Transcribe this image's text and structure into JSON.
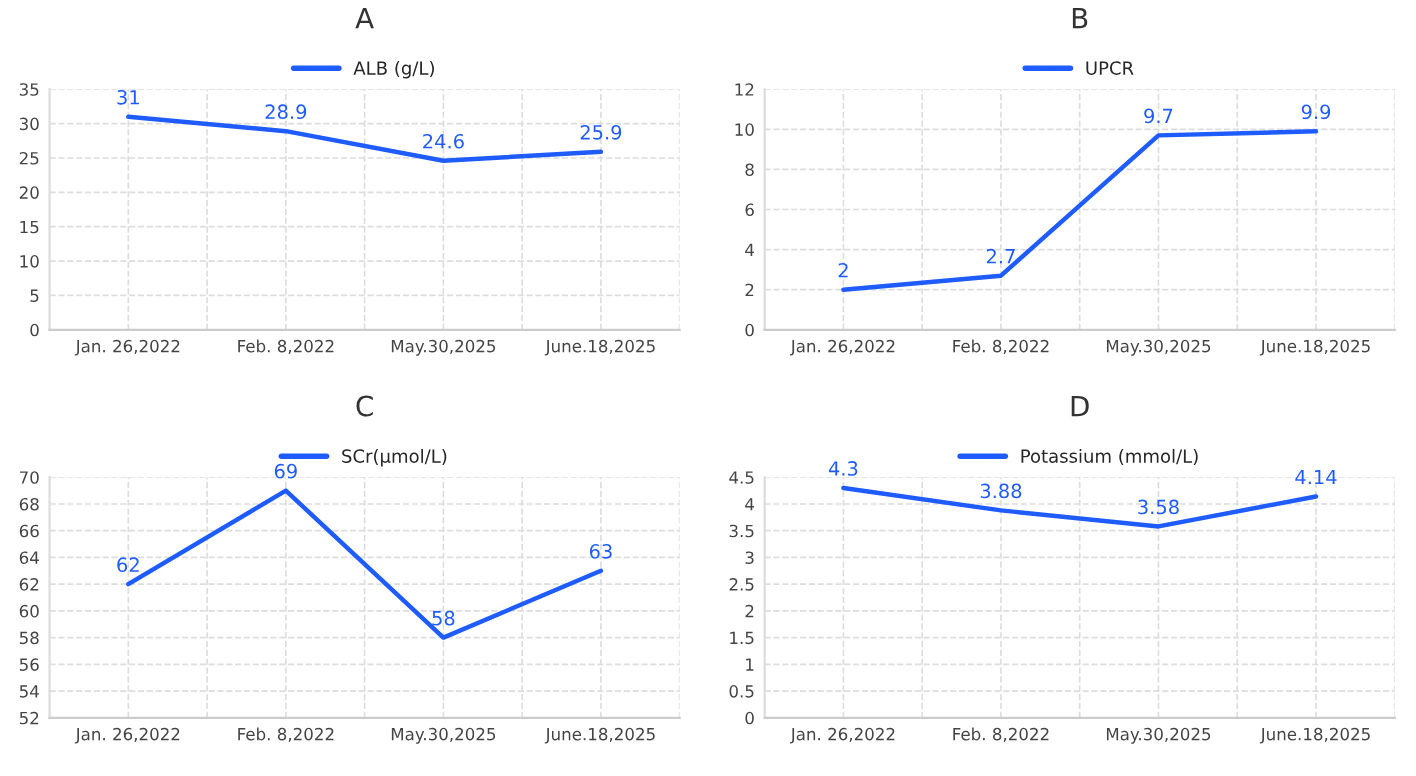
{
  "chart_data": [
    {
      "type": "line",
      "title": "A",
      "categories": [
        "Jan. 26,2022",
        "Feb. 8,2022",
        "May.30,2025",
        "June.18,2025"
      ],
      "series": [
        {
          "name": "ALB (g/L)",
          "color": "#1f5cff",
          "values": [
            31,
            28.9,
            24.6,
            25.9
          ]
        }
      ],
      "ylim": [
        0,
        35
      ],
      "yticks": [
        0,
        5,
        10,
        15,
        20,
        25,
        30,
        35
      ],
      "grid": true,
      "legend": "top",
      "data_labels": true,
      "line_style": "solid"
    },
    {
      "type": "line",
      "title": "B",
      "categories": [
        "Jan. 26,2022",
        "Feb. 8,2022",
        "May.30,2025",
        "June.18,2025"
      ],
      "series": [
        {
          "name": "UPCR",
          "color": "#1f5cff",
          "values": [
            2,
            2.7,
            9.7,
            9.9
          ]
        }
      ],
      "ylim": [
        0,
        12
      ],
      "yticks": [
        0,
        2,
        4,
        6,
        8,
        10,
        12
      ],
      "grid": true,
      "legend": "top",
      "data_labels": true,
      "line_style": "solid"
    },
    {
      "type": "line",
      "title": "C",
      "categories": [
        "Jan. 26,2022",
        "Feb. 8,2022",
        "May.30,2025",
        "June.18,2025"
      ],
      "series": [
        {
          "name": "SCr(μmol/L)",
          "color": "#1f5cff",
          "values": [
            62,
            69,
            58,
            63
          ]
        }
      ],
      "ylim": [
        52,
        70
      ],
      "yticks": [
        52,
        54,
        56,
        58,
        60,
        62,
        64,
        66,
        68,
        70
      ],
      "grid": true,
      "legend": "top",
      "data_labels": true,
      "line_style": "solid"
    },
    {
      "type": "line",
      "title": "D",
      "categories": [
        "Jan. 26,2022",
        "Feb. 8,2022",
        "May.30,2025",
        "June.18,2025"
      ],
      "series": [
        {
          "name": "Potassium (mmol/L)",
          "color": "#1f5cff",
          "values": [
            4.3,
            3.88,
            3.58,
            4.14
          ]
        }
      ],
      "ylim": [
        0,
        4.5
      ],
      "yticks": [
        0,
        0.5,
        1,
        1.5,
        2,
        2.5,
        3,
        3.5,
        4,
        4.5
      ],
      "grid": true,
      "legend": "top",
      "data_labels": true,
      "line_style": "solid"
    }
  ]
}
